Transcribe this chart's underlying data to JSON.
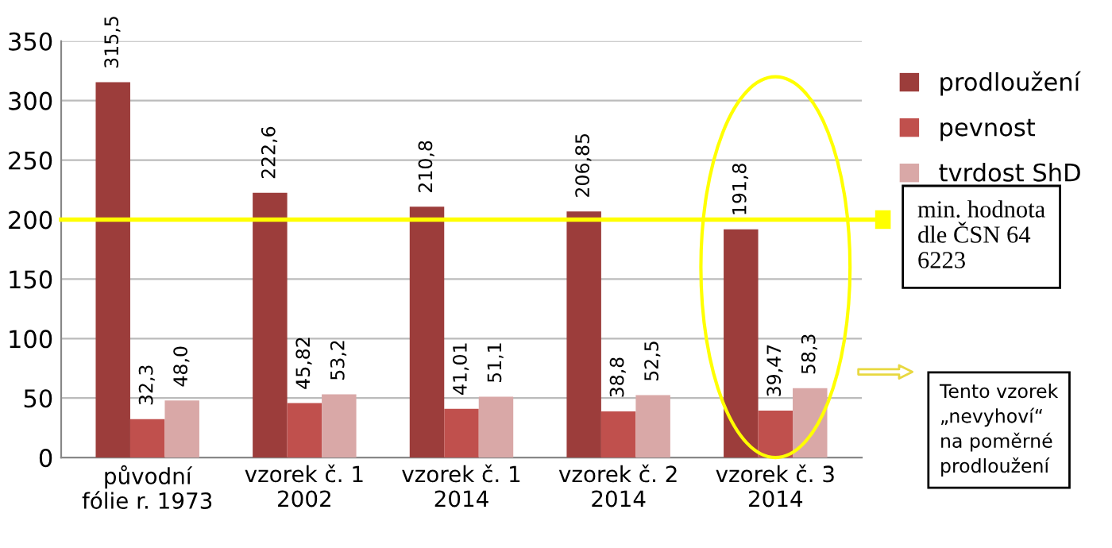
{
  "chart_data": {
    "type": "bar",
    "categories": [
      "původní\nfólie r. 1973",
      "vzorek č. 1\n2002",
      "vzorek č. 1\n2014",
      "vzorek č. 2\n2014",
      "vzorek č. 3\n2014"
    ],
    "series": [
      {
        "name": "prodloužení",
        "color": "#9c3d3b",
        "values": [
          315.5,
          222.6,
          210.8,
          206.85,
          191.8
        ],
        "value_labels": [
          "315,5",
          "222,6",
          "210,8",
          "206,85",
          "191,8"
        ]
      },
      {
        "name": "pevnost",
        "color": "#c0504d",
        "values": [
          32.3,
          45.82,
          41.01,
          38.8,
          39.47
        ],
        "value_labels": [
          "32,3",
          "45,82",
          "41,01",
          "38,8",
          "39,47"
        ]
      },
      {
        "name": "tvrdost ShD",
        "color": "#d9a8a7",
        "values": [
          48.0,
          53.2,
          51.1,
          52.5,
          58.3
        ],
        "value_labels": [
          "48,0",
          "53,2",
          "51,1",
          "52,5",
          "58,3"
        ]
      }
    ],
    "ylim": [
      0,
      350
    ],
    "yticks": [
      0,
      50,
      100,
      150,
      200,
      250,
      300,
      350
    ],
    "grid": "y",
    "legend": "top right",
    "ref_lines": [
      {
        "axis": "y",
        "value": 200,
        "label": "min. hodnota\ndle ČSN 64\n6223",
        "color": "#ffff00"
      }
    ],
    "annotations": [
      "Tento vzorek\n„nevyhoví“\nna poměrné\nprodloužení"
    ]
  }
}
